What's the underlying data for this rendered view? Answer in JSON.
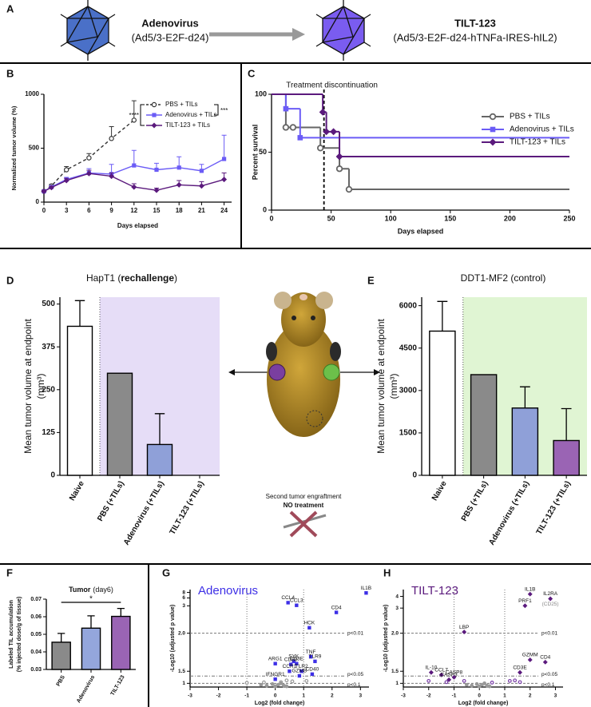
{
  "panel_labels": [
    "A",
    "B",
    "C",
    "D",
    "E",
    "F",
    "G",
    "H"
  ],
  "scheme": {
    "left_name": "Adenovirus",
    "left_construct": "(Ad5/3-E2F-d24)",
    "right_name": "TILT-123",
    "right_construct": "(Ad5/3-E2F-d24-hTNFa-IRES-hIL2)"
  },
  "mouse": {
    "caption": "Second tumor engraftment",
    "emphasis": "NO treatment"
  },
  "chart_data": [
    {
      "type": "line",
      "xlabel": "Days elapsed",
      "ylabel": "Normalized tumor volume (%)",
      "x": [
        0,
        1,
        3,
        6,
        9,
        12,
        15,
        18,
        21,
        24
      ],
      "xlim": [
        0,
        25
      ],
      "xticks": [
        0,
        3,
        6,
        9,
        12,
        15,
        18,
        21,
        24
      ],
      "ylim": [
        0,
        1000
      ],
      "yticks": [
        0,
        500,
        1000
      ],
      "annotations": [
        "****",
        "***"
      ],
      "series": [
        {
          "name": "PBS + TILs",
          "color": "#333333",
          "marker": "circle-open",
          "dashed": true,
          "values": [
            100,
            150,
            300,
            410,
            590,
            760,
            null,
            null,
            null,
            null
          ],
          "errors": [
            10,
            15,
            30,
            40,
            110,
            180,
            null,
            null,
            null,
            null
          ]
        },
        {
          "name": "Adenovirus + TILs",
          "color": "#6b5cf6",
          "marker": "square",
          "dashed": false,
          "values": [
            100,
            140,
            210,
            270,
            260,
            340,
            300,
            320,
            290,
            400
          ],
          "errors": [
            10,
            15,
            20,
            40,
            90,
            140,
            60,
            100,
            60,
            220
          ]
        },
        {
          "name": "TILT-123 + TILs",
          "color": "#5b1a7d",
          "marker": "diamond",
          "dashed": false,
          "values": [
            100,
            135,
            200,
            265,
            240,
            140,
            110,
            160,
            150,
            210
          ],
          "errors": [
            10,
            10,
            20,
            30,
            30,
            30,
            20,
            40,
            40,
            60
          ]
        }
      ]
    },
    {
      "type": "step",
      "xlabel": "Days elapsed",
      "ylabel": "Percent survival",
      "xlim": [
        0,
        250
      ],
      "xticks": [
        0,
        50,
        100,
        150,
        200,
        250
      ],
      "ylim": [
        0,
        100
      ],
      "yticks": [
        0,
        50,
        100
      ],
      "vline_x": 44,
      "vline_label": "Treatment discontinuation",
      "series": [
        {
          "name": "PBS + TILs",
          "color": "#666666",
          "marker": "circle-open",
          "x": [
            0,
            12,
            18,
            41,
            57,
            65
          ],
          "values": [
            100,
            71.4,
            71.4,
            53.6,
            35.7,
            17.9
          ]
        },
        {
          "name": "Adenovirus + TILs",
          "color": "#6b5cf6",
          "marker": "square",
          "x": [
            0,
            12,
            24
          ],
          "values": [
            100,
            87.5,
            62.5
          ]
        },
        {
          "name": "TILT-123 + TILs",
          "color": "#5b1a7d",
          "marker": "diamond",
          "x": [
            0,
            43,
            46,
            52,
            57
          ],
          "values": [
            100,
            84.6,
            67.7,
            67.7,
            46.2
          ]
        }
      ]
    },
    {
      "type": "bar",
      "title_parts": [
        "HapT1 (",
        "rechallenge",
        ")"
      ],
      "ylabel_lines": [
        "Mean tumor volume at endpoint",
        "(mm³)"
      ],
      "categories": [
        "Naive",
        "PBS (+TILs)",
        "Adenovirus (+TILs)",
        "TILT-123 (+TILs)"
      ],
      "values": [
        435,
        298,
        90,
        0
      ],
      "errors": [
        75,
        null,
        90,
        null
      ],
      "colors": [
        "#ffffff",
        "#8a8a8a",
        "#8fa0d8",
        "#9a64b4"
      ],
      "shade_color": "#e6ddf7",
      "ylim": [
        0,
        520
      ],
      "yticks": [
        0,
        125,
        250,
        375,
        500
      ]
    },
    {
      "type": "bar",
      "title": "DDT1-MF2 (control)",
      "ylabel_lines": [
        "Mean tumor volume at endpoint",
        "(mm³)"
      ],
      "categories": [
        "Naive",
        "PBS (+TILs)",
        "Adenovirus (+TILs)",
        "TILT-123 (+TILs)"
      ],
      "values": [
        5100,
        3560,
        2380,
        1230
      ],
      "errors": [
        1050,
        null,
        750,
        1130
      ],
      "colors": [
        "#ffffff",
        "#8a8a8a",
        "#8fa0d8",
        "#9a64b4"
      ],
      "shade_color": "#e0f5d3",
      "ylim": [
        0,
        6300
      ],
      "yticks": [
        0,
        1500,
        3000,
        4500,
        6000
      ]
    },
    {
      "type": "bar",
      "title_parts": [
        "Tumor",
        "(day6)"
      ],
      "ylabel_lines": [
        "Labeled TIL accumulation",
        "(% injected dose/g of tissue)"
      ],
      "categories": [
        "PBS",
        "Adenovirus",
        "TILT-123"
      ],
      "values": [
        0.0455,
        0.0535,
        0.0602
      ],
      "errors": [
        0.005,
        0.007,
        0.0045
      ],
      "colors": [
        "#8a8a8a",
        "#94a6dc",
        "#9a64b4"
      ],
      "significance": "*",
      "ylim": [
        0.03,
        0.07
      ],
      "yticks": [
        0.03,
        0.04,
        0.05,
        0.06,
        0.07
      ]
    },
    {
      "type": "volcano",
      "title": "Adenovirus",
      "title_color": "#3d2fe6",
      "xlabel": "Log2 (fold change)",
      "ylabel": "-Log10 (adjusted p value)",
      "xlim": [
        -3,
        3.3
      ],
      "xticks": [
        -3,
        -2,
        -1,
        0,
        1,
        2,
        3
      ],
      "ylim": [
        0.95,
        8.8
      ],
      "yticks": [
        1,
        1.5,
        {
          "value": 2,
          "label": "2.0"
        },
        3,
        6,
        8
      ],
      "vlines": [
        -1,
        1
      ],
      "thresholds": [
        {
          "value": 2,
          "label": "p<0.01"
        },
        {
          "value": 1.3,
          "label": "p<0.05"
        },
        {
          "value": 1,
          "label": "p<0.1"
        }
      ],
      "series": [
        {
          "color": "#3d2fe6",
          "marker": "square",
          "labels": [
            "IL1B",
            "CCL4",
            "CCL3",
            "CD4",
            "HCK",
            "TNF",
            "TLR9",
            "SYK",
            "CD80",
            "CD3E",
            "ARG1",
            "CCR1",
            "TLR2",
            "CD40",
            "GZMB",
            "IFNGR1"
          ],
          "x": [
            3.2,
            0.45,
            0.75,
            2.15,
            1.2,
            1.25,
            1.4,
            0.65,
            0.55,
            0.75,
            0.0,
            0.5,
            0.93,
            1.3,
            0.85,
            0.0
          ],
          "values": [
            7.8,
            4.2,
            3.2,
            2.76,
            2.2,
            1.69,
            1.63,
            1.63,
            1.59,
            1.6,
            1.6,
            1.5,
            1.5,
            1.38,
            1.31,
            1.17
          ]
        },
        {
          "color": "#999999",
          "marker": "circle-open",
          "x": [
            0.2,
            0.6,
            -1.0,
            1.1,
            0.4,
            -0.4
          ],
          "values": [
            1.05,
            1.08,
            1.02,
            1.1,
            1.12,
            1.04
          ]
        },
        {
          "color": "#999999",
          "marker": "circle",
          "x": [
            -0.3,
            -0.1,
            0,
            0.1,
            0.2,
            0.3,
            -0.5,
            0.4
          ],
          "values": [
            0.97,
            0.99,
            0.96,
            0.98,
            1.0,
            0.97,
            0.98,
            0.96
          ]
        }
      ]
    },
    {
      "type": "volcano",
      "title": "TILT-123",
      "title_color": "#5b1a7d",
      "xlabel": "Log2 (fold change)",
      "ylabel": "-Log10 (adjusted p value)",
      "xlim": [
        -3,
        3.3
      ],
      "xticks": [
        -3,
        -2,
        -1,
        0,
        1,
        2,
        3
      ],
      "ylim": [
        0.95,
        4.6
      ],
      "yticks": [
        1,
        1.5,
        {
          "value": 2,
          "label": "2.0"
        },
        3,
        4
      ],
      "vlines": [
        -1,
        1
      ],
      "thresholds": [
        {
          "value": 2,
          "label": "p<0.01"
        },
        {
          "value": 1.3,
          "label": "p<0.05"
        },
        {
          "value": 1,
          "label": "p<0.1"
        }
      ],
      "series": [
        {
          "color": "#5b1a7d",
          "marker": "diamond",
          "labels": [
            "IL1B",
            "IL2RA",
            "PRF1",
            "LBP",
            "GZMM",
            "CD4",
            "CD3E",
            "IL-10",
            "CCL7",
            "CASP8",
            "CASP3"
          ],
          "label_notes": [
            null,
            "(CD25)",
            null,
            null,
            null,
            null,
            null,
            null,
            null,
            null,
            null
          ],
          "x": [
            2.0,
            2.8,
            1.8,
            -0.6,
            2.0,
            2.6,
            1.6,
            -1.9,
            -1.5,
            -1.0,
            -1.2
          ],
          "values": [
            4.2,
            3.8,
            3.2,
            2.05,
            1.65,
            1.62,
            1.45,
            1.45,
            1.35,
            1.25,
            1.15
          ]
        },
        {
          "color": "#7a3fa8",
          "marker": "circle-open",
          "x": [
            -2.0,
            -1.3,
            -0.6,
            1.2,
            1.6,
            1.4,
            0.5
          ],
          "values": [
            1.1,
            1.05,
            1.1,
            1.1,
            1.05,
            1.12,
            1.03
          ]
        },
        {
          "color": "#999999",
          "marker": "circle",
          "x": [
            -0.3,
            -0.1,
            0,
            0.1,
            0.2,
            0.3,
            -0.5,
            0.4
          ],
          "values": [
            0.97,
            0.99,
            0.96,
            0.98,
            1.0,
            0.97,
            0.98,
            0.96
          ]
        }
      ]
    }
  ]
}
